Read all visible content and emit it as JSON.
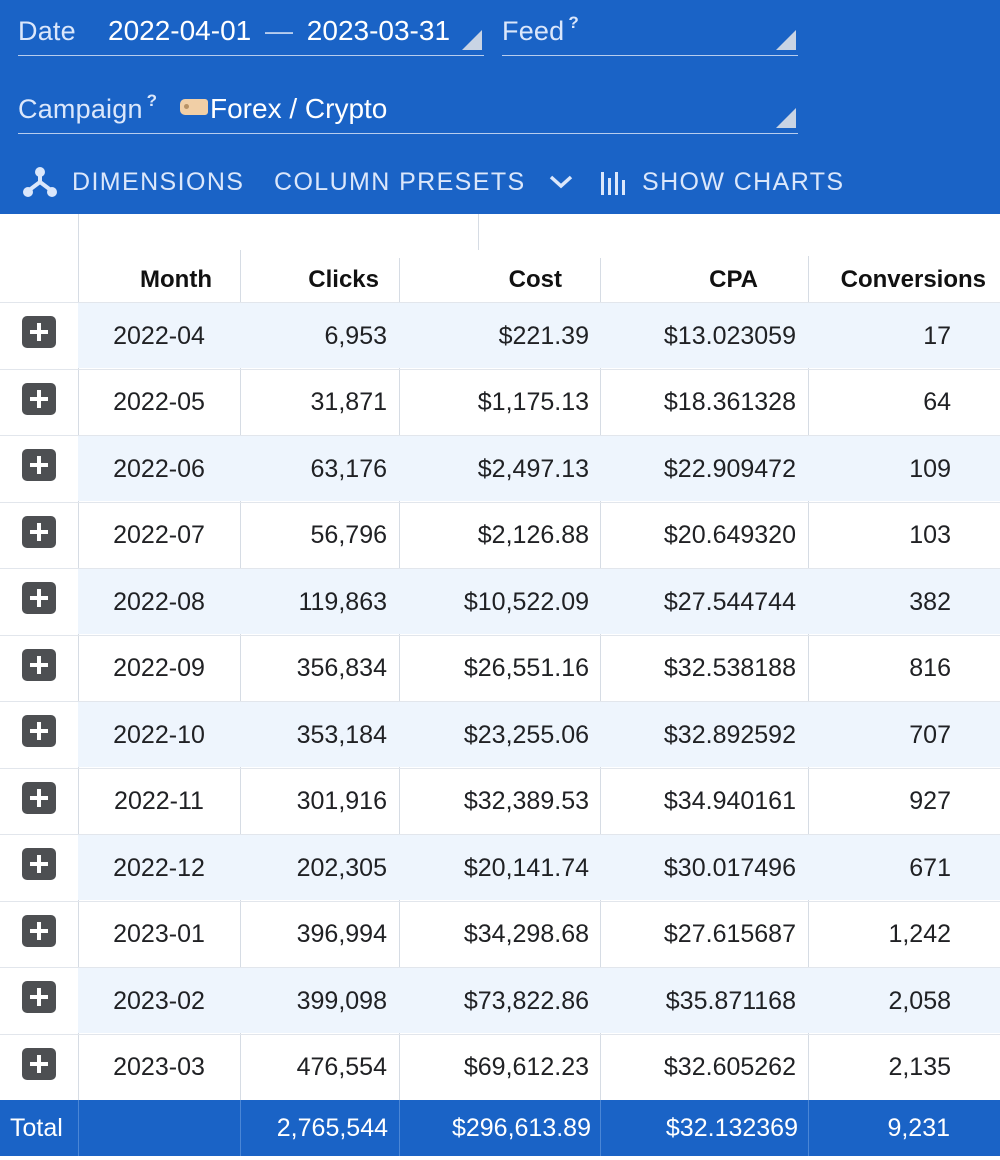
{
  "filters": {
    "date": {
      "label": "Date",
      "start": "2022-04-01",
      "separator": "—",
      "end": "2023-03-31"
    },
    "feed": {
      "label": "Feed",
      "help": "?",
      "value": ""
    },
    "campaign": {
      "label": "Campaign",
      "help": "?",
      "value": "Forex / Crypto"
    }
  },
  "toolbar": {
    "dimensions": "DIMENSIONS",
    "column_presets": "COLUMN PRESETS",
    "show_charts": "SHOW CHARTS"
  },
  "icons": {
    "dimensions": "hierarchy-icon",
    "column_presets": "chevron-down-icon",
    "show_charts": "bar-chart-icon",
    "expand": "plus-icon",
    "tag": "tag-icon"
  },
  "colors": {
    "brand": "#1a63c6",
    "row_alt": "#eef5fd"
  },
  "table": {
    "columns": [
      "Month",
      "Clicks",
      "Cost",
      "CPA",
      "Conversions"
    ],
    "rows": [
      {
        "month": "2022-04",
        "clicks": "6,953",
        "cost": "$221.39",
        "cpa": "$13.023059",
        "conversions": "17"
      },
      {
        "month": "2022-05",
        "clicks": "31,871",
        "cost": "$1,175.13",
        "cpa": "$18.361328",
        "conversions": "64"
      },
      {
        "month": "2022-06",
        "clicks": "63,176",
        "cost": "$2,497.13",
        "cpa": "$22.909472",
        "conversions": "109"
      },
      {
        "month": "2022-07",
        "clicks": "56,796",
        "cost": "$2,126.88",
        "cpa": "$20.649320",
        "conversions": "103"
      },
      {
        "month": "2022-08",
        "clicks": "119,863",
        "cost": "$10,522.09",
        "cpa": "$27.544744",
        "conversions": "382"
      },
      {
        "month": "2022-09",
        "clicks": "356,834",
        "cost": "$26,551.16",
        "cpa": "$32.538188",
        "conversions": "816"
      },
      {
        "month": "2022-10",
        "clicks": "353,184",
        "cost": "$23,255.06",
        "cpa": "$32.892592",
        "conversions": "707"
      },
      {
        "month": "2022-11",
        "clicks": "301,916",
        "cost": "$32,389.53",
        "cpa": "$34.940161",
        "conversions": "927"
      },
      {
        "month": "2022-12",
        "clicks": "202,305",
        "cost": "$20,141.74",
        "cpa": "$30.017496",
        "conversions": "671"
      },
      {
        "month": "2023-01",
        "clicks": "396,994",
        "cost": "$34,298.68",
        "cpa": "$27.615687",
        "conversions": "1,242"
      },
      {
        "month": "2023-02",
        "clicks": "399,098",
        "cost": "$73,822.86",
        "cpa": "$35.871168",
        "conversions": "2,058"
      },
      {
        "month": "2023-03",
        "clicks": "476,554",
        "cost": "$69,612.23",
        "cpa": "$32.605262",
        "conversions": "2,135"
      }
    ],
    "total": {
      "label": "Total",
      "clicks": "2,765,544",
      "cost": "$296,613.89",
      "cpa": "$32.132369",
      "conversions": "9,231"
    }
  }
}
